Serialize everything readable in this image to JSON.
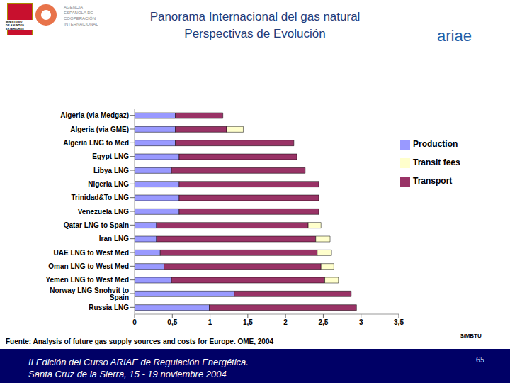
{
  "chart_data": {
    "type": "bar",
    "orientation": "horizontal",
    "stacked": true,
    "title": "Panorama Internacional del gas natural",
    "subtitle": "Perspectivas de Evolución",
    "x_label": "$/MBTU",
    "source": "Fuente: Analysis of future gas supply sources and costs for Europe. OME, 2004",
    "categories": [
      "Algeria (via Medgaz)",
      "Algeria (via GME)",
      "Algeria LNG to Med",
      "Egypt LNG",
      "Libya LNG",
      "Nigeria LNG",
      "Trinidad&To LNG",
      "Venezuela LNG",
      "Qatar LNG to Spain",
      "Iran LNG",
      "UAE LNG to West Med",
      "Oman LNG to West Med",
      "Yemen LNG to West Med",
      "Norway LNG Snohvit to Spain",
      "Russia LNG"
    ],
    "series": [
      {
        "name": "Production",
        "color": "#9999ff",
        "values": [
          0.54,
          0.54,
          0.54,
          0.59,
          0.49,
          0.59,
          0.59,
          0.59,
          0.29,
          0.29,
          0.34,
          0.39,
          0.49,
          1.32,
          0.99
        ]
      },
      {
        "name": "Transport",
        "color": "#993366",
        "values": [
          0.63,
          0.68,
          1.57,
          1.56,
          1.77,
          1.85,
          1.85,
          1.85,
          2.01,
          2.11,
          2.08,
          2.08,
          2.03,
          1.55,
          1.95
        ]
      },
      {
        "name": "Transit fees",
        "color": "#ffffcc",
        "values": [
          0,
          0.22,
          0,
          0,
          0,
          0,
          0,
          0,
          0.17,
          0.19,
          0.19,
          0.17,
          0.18,
          0,
          0
        ]
      }
    ],
    "xlim": [
      0,
      3.5
    ],
    "xticks": [
      0,
      {
        "value": 0.5,
        "label": "0,5"
      },
      1,
      {
        "value": 1.5,
        "label": "1,5"
      },
      2,
      {
        "value": 2.5,
        "label": "2,5"
      },
      3,
      {
        "value": 3.5,
        "label": "3,5"
      }
    ],
    "grid": false,
    "legend": "upper right"
  },
  "header": {
    "agency": [
      "AGENCIA",
      "ESPAÑOLA DE",
      "COOPERACIÓN",
      "INTERNACIONAL"
    ],
    "ministry": [
      "MINISTERIO",
      "DE ASUNTOS",
      "EXTERIORES"
    ],
    "logo": "ariae"
  },
  "footer": {
    "lines": [
      "II Edición del Curso ARIAE de Regulación Energética.",
      "Santa Cruz de la Sierra, 15 - 19 noviembre 2004"
    ],
    "page": "65"
  }
}
